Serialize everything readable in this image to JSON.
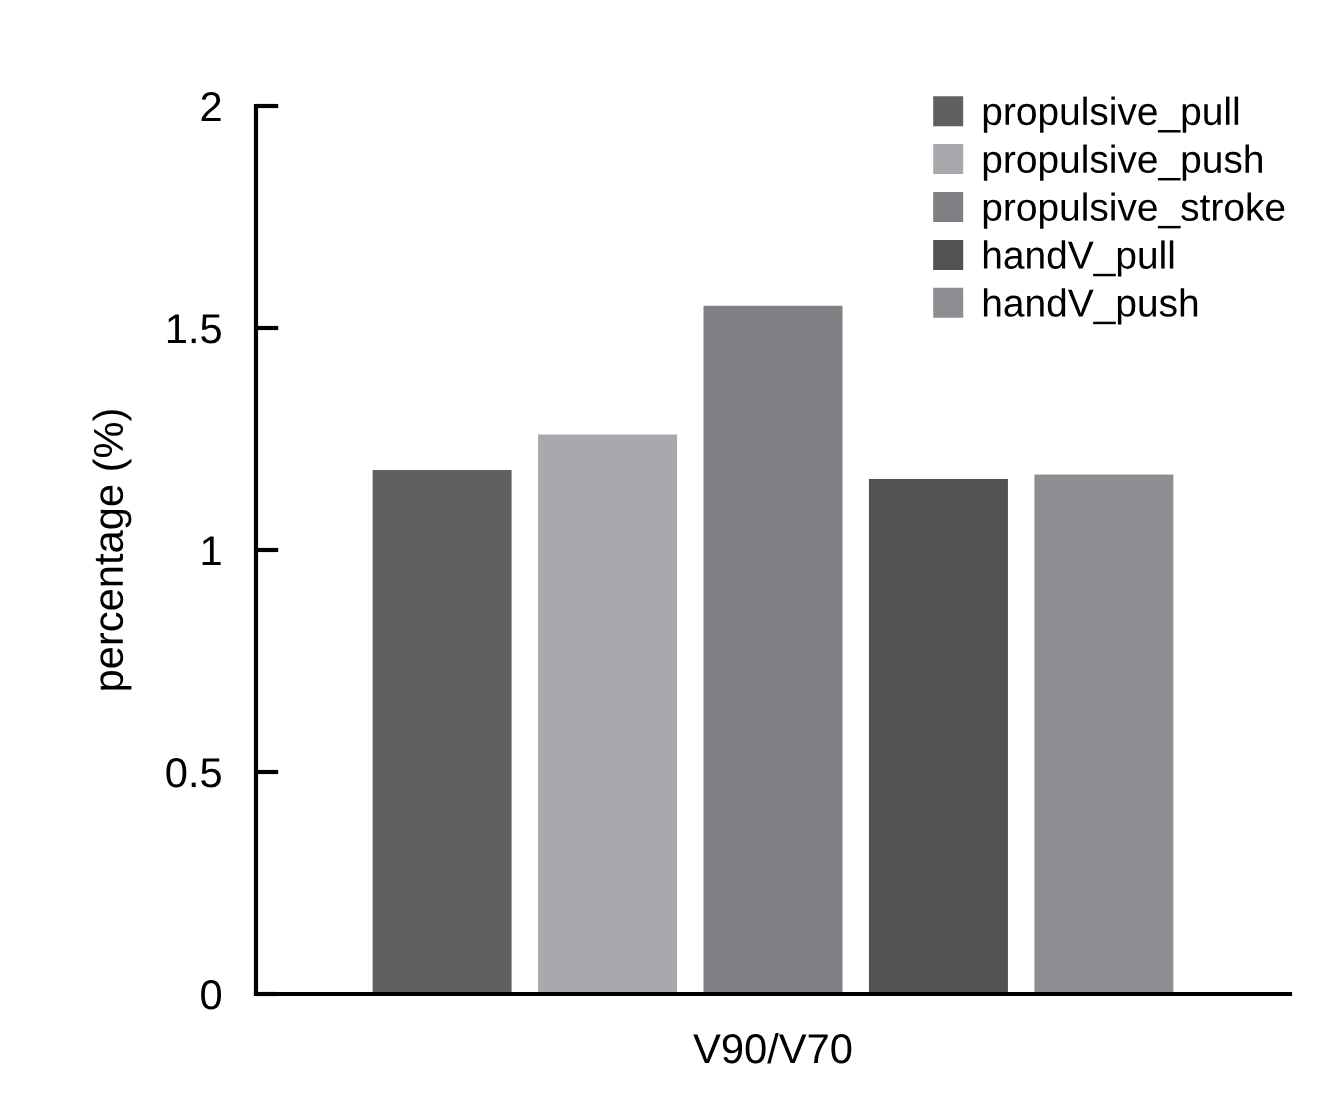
{
  "chart_data": {
    "type": "bar",
    "ylabel": "percentage (%)",
    "categories": [
      "V90/V70"
    ],
    "series": [
      {
        "name": "propulsive_pull",
        "color": "#5f6062",
        "values": [
          1.18
        ]
      },
      {
        "name": "propulsive_push",
        "color": "#a8a9ac",
        "values": [
          1.26
        ]
      },
      {
        "name": "propulsive_stroke",
        "color": "#808084",
        "values": [
          1.55
        ]
      },
      {
        "name": "handV_pull",
        "color": "#525255",
        "values": [
          1.16
        ]
      },
      {
        "name": "handV_push",
        "color": "#8e8d92",
        "values": [
          1.17
        ]
      }
    ],
    "ylim": [
      0,
      2
    ],
    "yticks": [
      0,
      0.5,
      1,
      1.5,
      2
    ],
    "grid": false,
    "legend": "top right"
  }
}
